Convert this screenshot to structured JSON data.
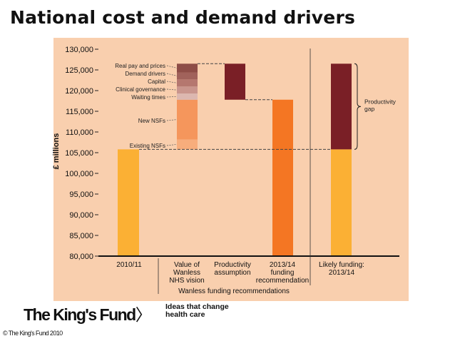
{
  "page": {
    "title": "National cost and demand drivers",
    "logo_text": "The King's Fund",
    "logo_arrow": "〉",
    "tagline_line1": "Ideas that change",
    "tagline_line2": "health care",
    "copyright": "© The King's Fund 2010"
  },
  "colors": {
    "panel": "#f9cfae",
    "amber": "#fbb034",
    "dark_red": "#7a1f26",
    "orange": "#f47623",
    "existing_nsfs": "#f7ad7c",
    "new_nsfs": "#f5965c",
    "waiting_times": "#dcb7b0",
    "clinical_governance": "#c9958d",
    "capital": "#b5776f",
    "demand_drivers": "#a1625b",
    "real_pay": "#8e4d47"
  },
  "chart_data": {
    "type": "bar",
    "subtype": "waterfall",
    "ylabel": "£ millions",
    "ylim": [
      80000,
      130000
    ],
    "yticks": [
      80000,
      85000,
      90000,
      95000,
      100000,
      105000,
      110000,
      115000,
      120000,
      125000,
      130000
    ],
    "ytick_labels": [
      "80,000",
      "85,000",
      "90,000",
      "95,000",
      "100,000",
      "105,000",
      "110,000",
      "115,000",
      "120,000",
      "125,000",
      "130,000"
    ],
    "categories": [
      {
        "lines": [
          "2010/11"
        ]
      },
      {
        "lines": [
          "Value of",
          "Wanless",
          "NHS vision"
        ]
      },
      {
        "lines": [
          "Productivity",
          "assumption"
        ]
      },
      {
        "lines": [
          "2013/14",
          "funding",
          "recommendation"
        ]
      },
      {
        "lines": [
          "Likely funding:",
          "2013/14"
        ]
      }
    ],
    "group_label": "Wanless funding recommendations",
    "bars": [
      {
        "category": 0,
        "bottom": 80000,
        "top": 105800,
        "color": "amber"
      },
      {
        "category": 1,
        "bottom": 105800,
        "top": 108200,
        "color": "existing_nsfs",
        "label": "Existing NSFs"
      },
      {
        "category": 1,
        "bottom": 108200,
        "top": 117800,
        "color": "new_nsfs",
        "label": "New NSFs"
      },
      {
        "category": 1,
        "bottom": 117800,
        "top": 119300,
        "color": "waiting_times",
        "label": "Waiting times"
      },
      {
        "category": 1,
        "bottom": 119300,
        "top": 121000,
        "color": "clinical_governance",
        "label": "Clinical governance"
      },
      {
        "category": 1,
        "bottom": 121000,
        "top": 122700,
        "color": "capital",
        "label": "Capital"
      },
      {
        "category": 1,
        "bottom": 122700,
        "top": 124400,
        "color": "demand_drivers",
        "label": "Demand drivers"
      },
      {
        "category": 1,
        "bottom": 124400,
        "top": 126500,
        "color": "real_pay",
        "label": "Real pay and prices"
      },
      {
        "category": 2,
        "bottom": 117800,
        "top": 126500,
        "color": "dark_red"
      },
      {
        "category": 3,
        "bottom": 80000,
        "top": 117800,
        "color": "orange"
      },
      {
        "category": 4,
        "bottom": 80000,
        "top": 105800,
        "color": "amber"
      },
      {
        "category": 4,
        "bottom": 105800,
        "top": 126500,
        "color": "dark_red"
      }
    ],
    "annotations": {
      "productivity_gap": "Productivity gap",
      "productivity_gap_lines": [
        "Productivity",
        "gap"
      ],
      "gap_range": [
        105800,
        126500
      ]
    }
  }
}
